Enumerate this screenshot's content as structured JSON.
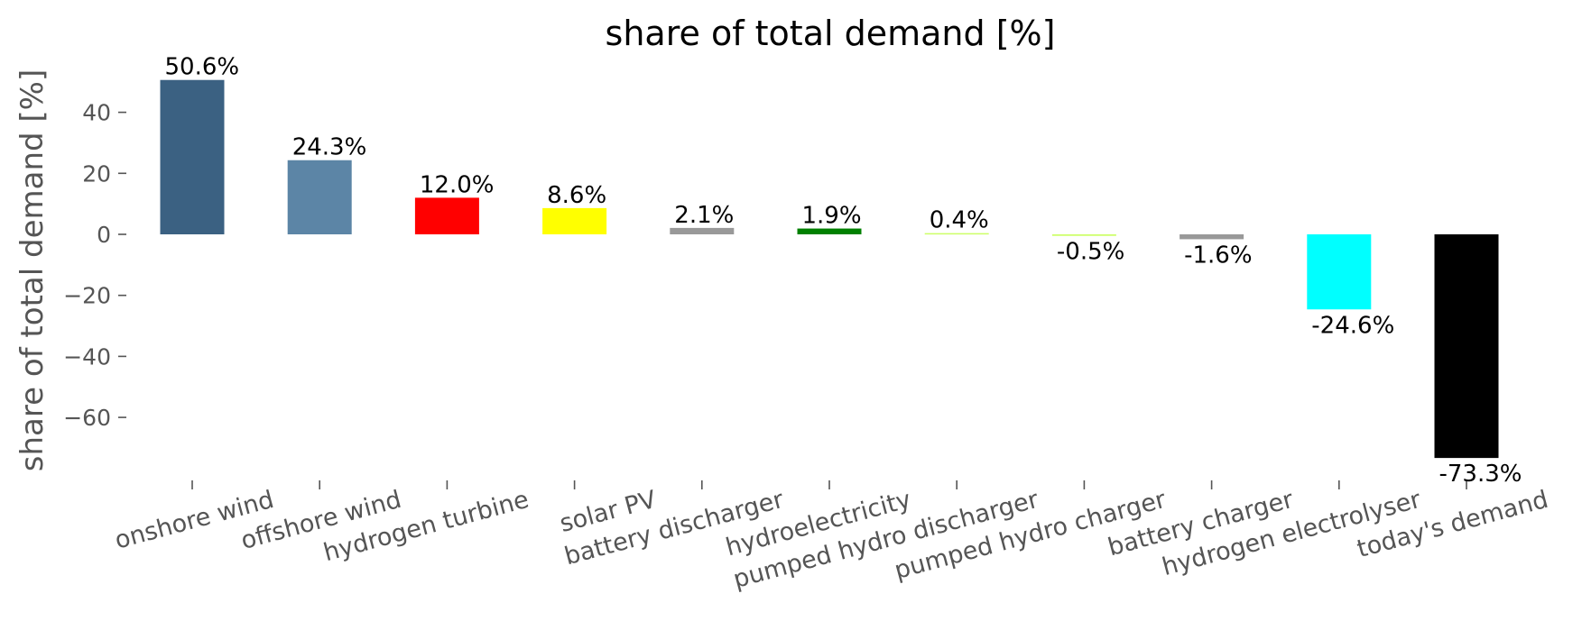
{
  "chart_data": {
    "type": "bar",
    "title": "share of total demand [%]",
    "xlabel": "",
    "ylabel": "share of total demand [%]",
    "ylim": [
      -81,
      54
    ],
    "yticks": [
      40,
      20,
      0,
      -20,
      -40,
      -60
    ],
    "ytick_labels": [
      "40",
      "20",
      "0",
      "−20",
      "−40",
      "−60"
    ],
    "grid": false,
    "categories": [
      "onshore wind",
      "offshore wind",
      "hydrogen turbine",
      "solar PV",
      "battery discharger",
      "hydroelectricity",
      "pumped hydro discharger",
      "pumped hydro charger",
      "battery charger",
      "hydrogen electrolyser",
      "today's demand"
    ],
    "values": [
      50.6,
      24.3,
      12.0,
      8.6,
      2.1,
      1.9,
      0.4,
      -0.5,
      -1.6,
      -24.6,
      -73.3
    ],
    "data_labels": [
      "50.6%",
      "24.3%",
      "12.0%",
      "8.6%",
      "2.1%",
      "1.9%",
      "0.4%",
      "-0.5%",
      "-1.6%",
      "-24.6%",
      "-73.3%"
    ],
    "colors": [
      "#3b6182",
      "#5c85a6",
      "#ff0000",
      "#ffff00",
      "#999999",
      "#008000",
      "#ccff66",
      "#ccff66",
      "#999999",
      "#00ffff",
      "#000000"
    ]
  }
}
